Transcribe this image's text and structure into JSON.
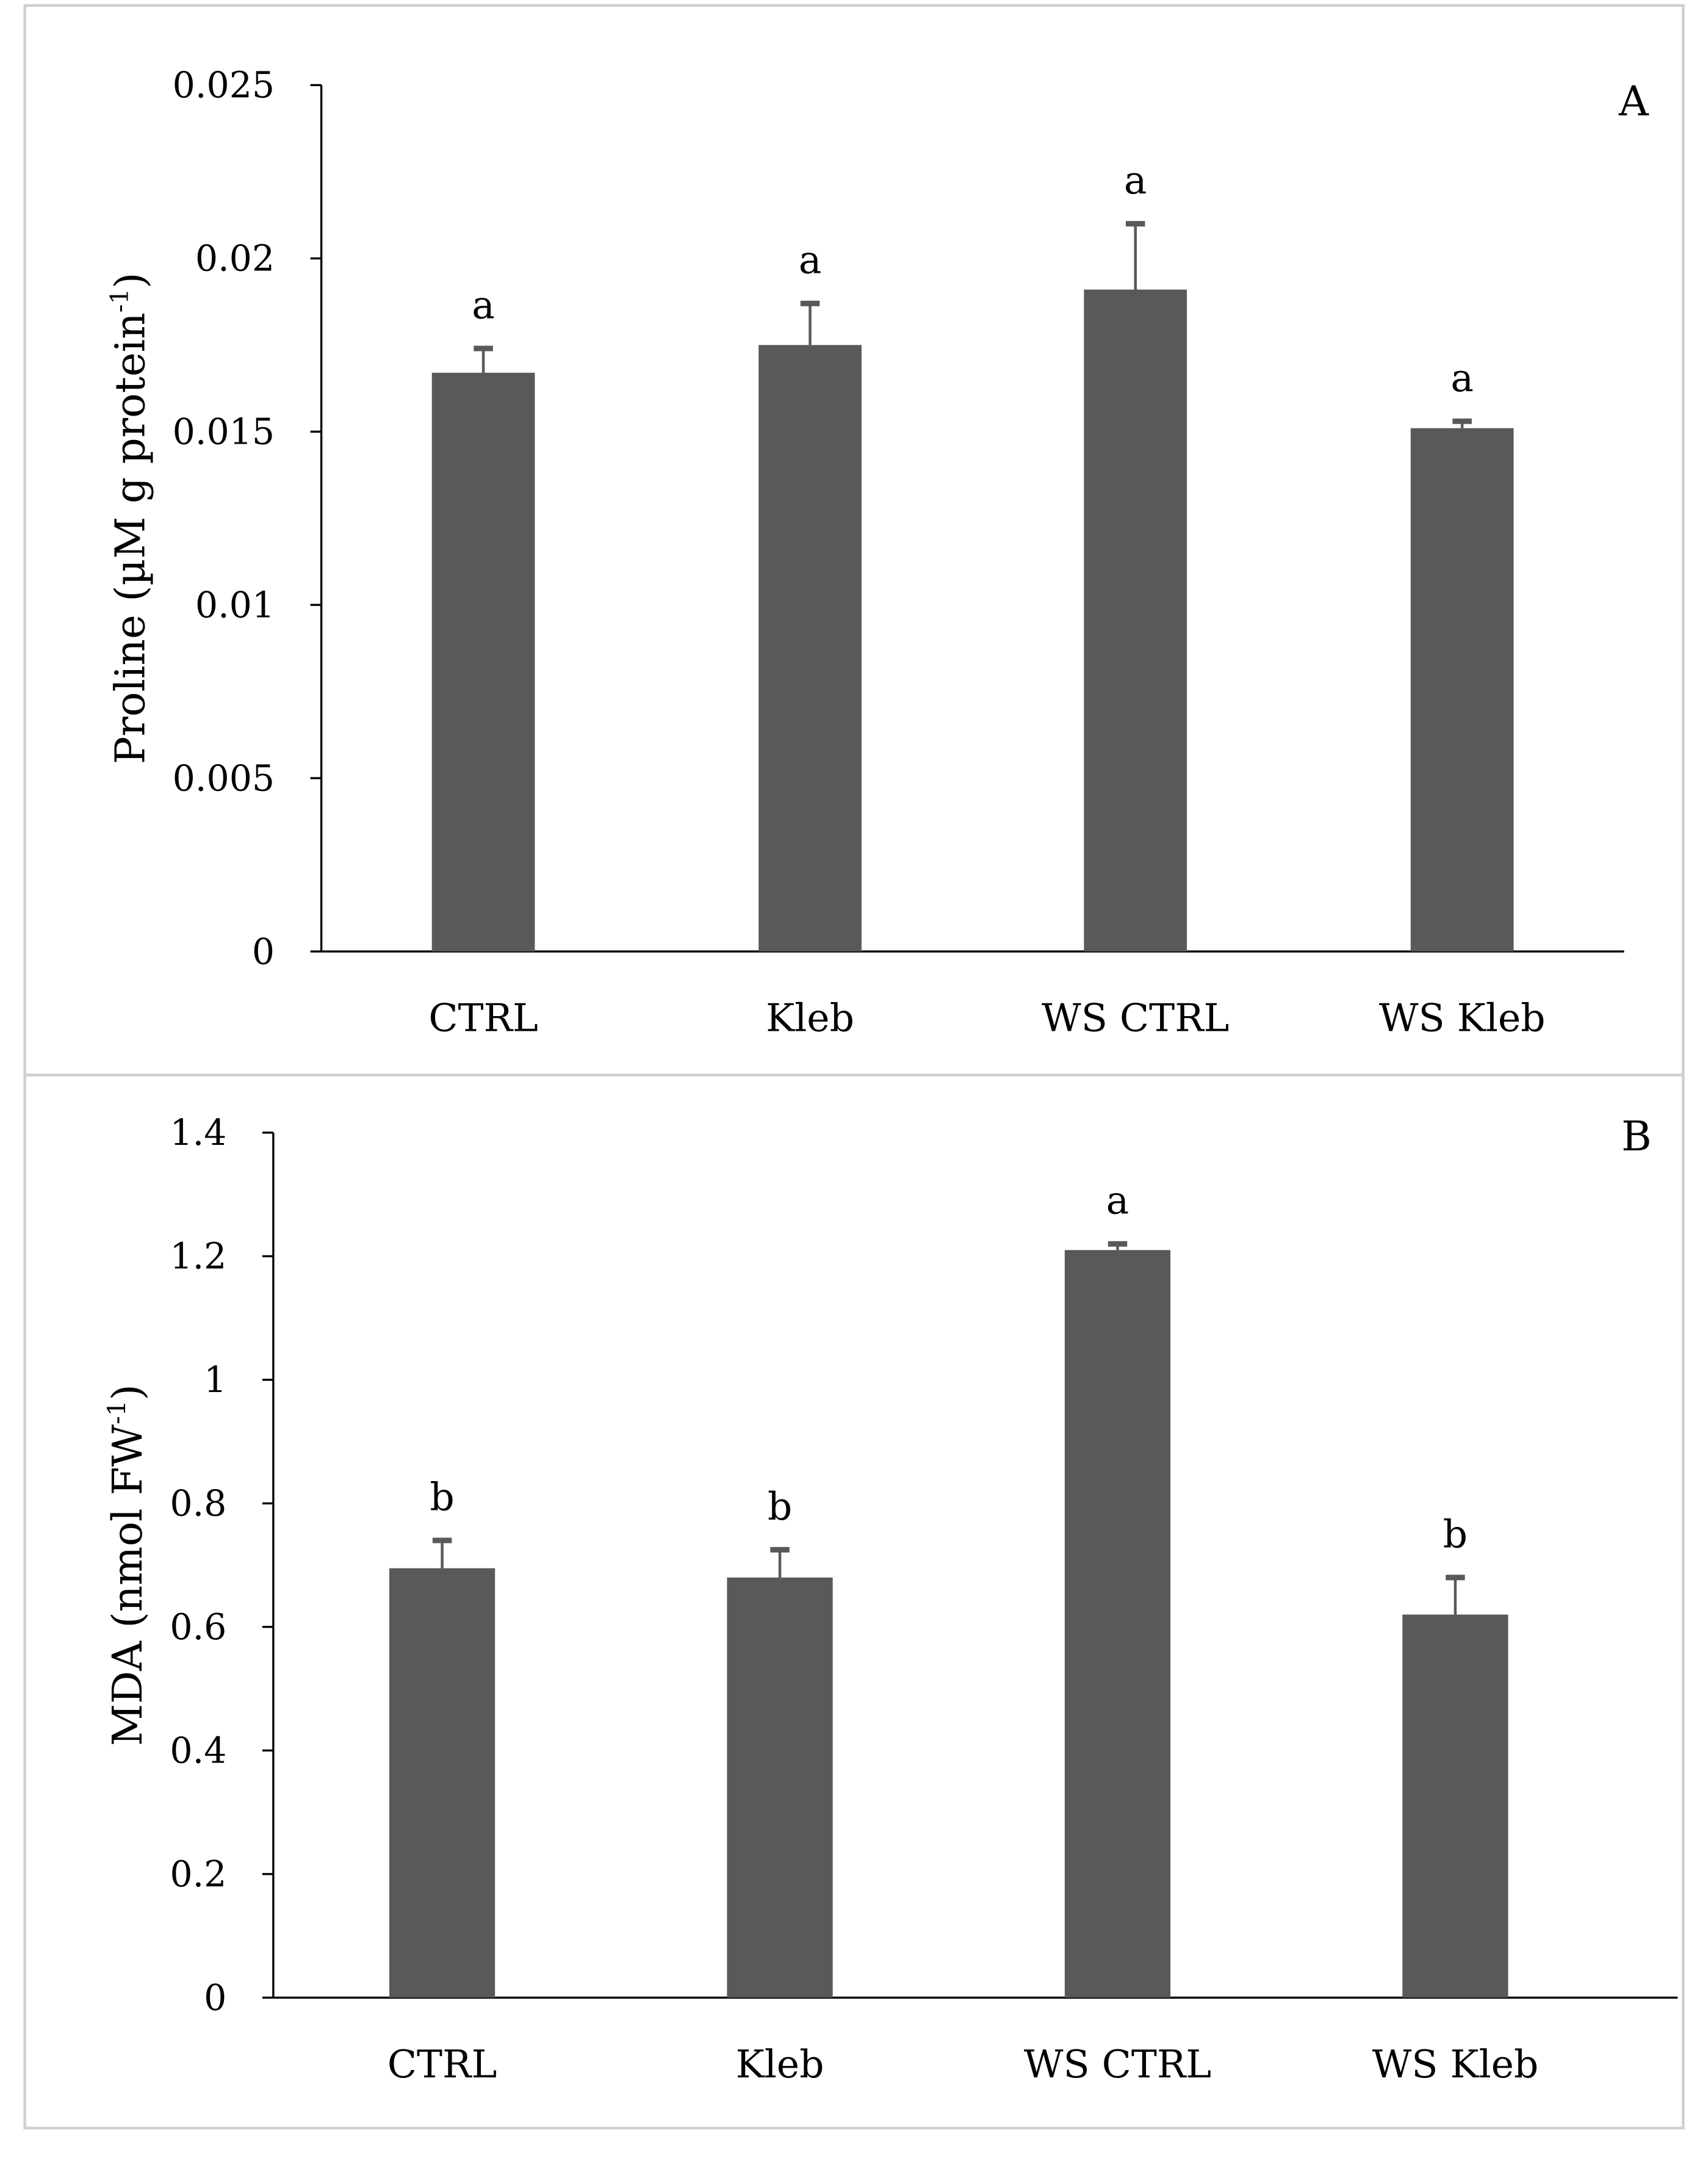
{
  "chart_data": [
    {
      "type": "bar",
      "panel_label": "A",
      "categories": [
        "CTRL",
        "Kleb",
        "WS CTRL",
        "WS Kleb"
      ],
      "values": [
        0.0167,
        0.0175,
        0.0191,
        0.0151
      ],
      "error_upper": [
        0.0174,
        0.0187,
        0.021,
        0.0153
      ],
      "significance": [
        "a",
        "a",
        "a",
        "a"
      ],
      "ylabel": "Proline (µM g protein",
      "ylabel_sup": "-1",
      "ylabel_end": ")",
      "xlabel": "",
      "ylim": [
        0,
        0.025
      ],
      "yticks": [
        "0",
        "0.005",
        "0.01",
        "0.015",
        "0.02",
        "0.025"
      ],
      "bar_color": "#595959"
    },
    {
      "type": "bar",
      "panel_label": "B",
      "categories": [
        "CTRL",
        "Kleb",
        "WS CTRL",
        "WS Kleb"
      ],
      "values": [
        0.695,
        0.68,
        1.21,
        0.62
      ],
      "error_upper": [
        0.74,
        0.725,
        1.22,
        0.68
      ],
      "significance": [
        "b",
        "b",
        "a",
        "b"
      ],
      "ylabel": "MDA (nmol  FW",
      "ylabel_sup": "-1",
      "ylabel_end": ")",
      "xlabel": "",
      "ylim": [
        0,
        1.4
      ],
      "yticks": [
        "0",
        "0.2",
        "0.4",
        "0.6",
        "0.8",
        "1",
        "1.2",
        "1.4"
      ],
      "bar_color": "#595959"
    }
  ]
}
